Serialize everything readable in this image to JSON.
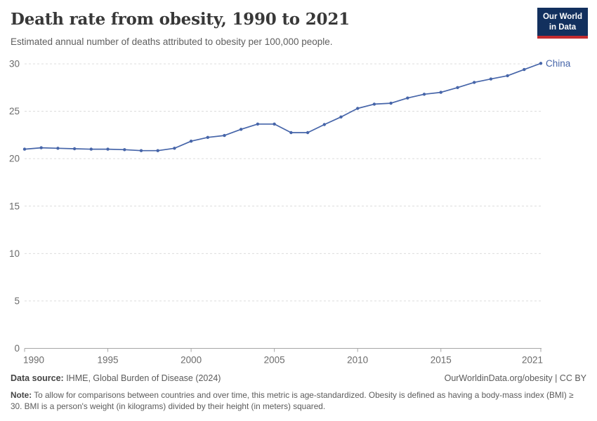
{
  "header": {
    "title": "Death rate from obesity, 1990 to 2021",
    "subtitle": "Estimated annual number of deaths attributed to obesity per 100,000 people.",
    "logo": {
      "line1": "Our World",
      "line2": "in Data",
      "bg_color": "#12305e",
      "stripe_color": "#c32b2f"
    }
  },
  "chart_data": {
    "type": "line",
    "title": "Death rate from obesity, 1990 to 2021",
    "xlabel": "",
    "ylabel": "",
    "xlim": [
      1990,
      2021
    ],
    "ylim": [
      0,
      30
    ],
    "x_ticks": [
      1990,
      1995,
      2000,
      2005,
      2010,
      2015,
      2021
    ],
    "y_ticks": [
      0,
      5,
      10,
      15,
      20,
      25,
      30
    ],
    "grid": "horizontal-dashed",
    "legend_position": "end-of-line-label",
    "axis_color": "#a6a6a6",
    "grid_color": "#dcdcdc",
    "tick_label_color": "#6b6b6b",
    "x": [
      1990,
      1991,
      1992,
      1993,
      1994,
      1995,
      1996,
      1997,
      1998,
      1999,
      2000,
      2001,
      2002,
      2003,
      2004,
      2005,
      2006,
      2007,
      2008,
      2009,
      2010,
      2011,
      2012,
      2013,
      2014,
      2015,
      2016,
      2017,
      2018,
      2019,
      2020,
      2021
    ],
    "series": [
      {
        "name": "China",
        "color": "#4665a9",
        "values": [
          21.0,
          21.15,
          21.1,
          21.05,
          21.0,
          21.0,
          20.95,
          20.85,
          20.85,
          21.1,
          21.85,
          22.25,
          22.45,
          23.1,
          23.65,
          23.65,
          22.75,
          22.75,
          23.6,
          24.4,
          25.3,
          25.75,
          25.85,
          26.4,
          26.8,
          27.0,
          27.5,
          28.05,
          28.4,
          28.75,
          29.4,
          30.05
        ]
      }
    ]
  },
  "footer": {
    "source_label": "Data source:",
    "source_value": " IHME, Global Burden of Disease (2024)",
    "rights": "OurWorldinData.org/obesity | CC BY",
    "note_label": "Note:",
    "note_value": " To allow for comparisons between countries and over time, this metric is age-standardized. Obesity is defined as having a body-mass index (BMI) ≥ 30. BMI is a person's weight (in kilograms) divided by their height (in meters) squared."
  }
}
